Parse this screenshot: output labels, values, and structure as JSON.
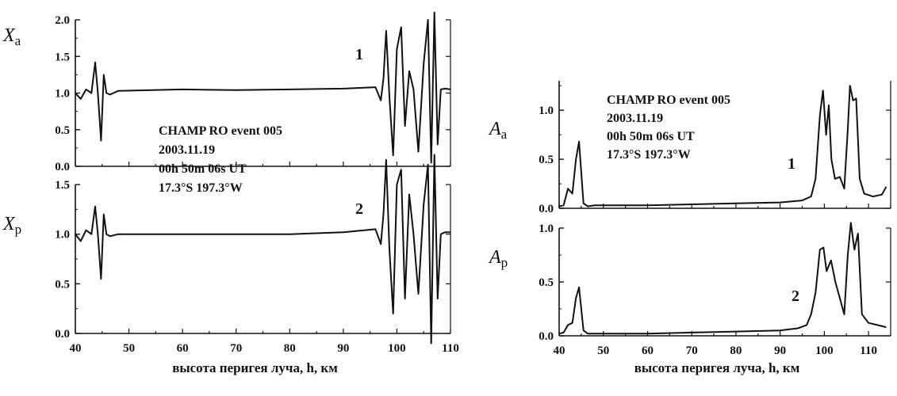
{
  "chart_data": [
    {
      "type": "line",
      "panel": "left-top",
      "ylabel": "Xa",
      "ylabel_main": "X",
      "ylabel_sub": "a",
      "curve_label": "1",
      "annotation": [
        "CHAMP RO event 005",
        "2003.11.19",
        "00h 50m 06s UT",
        "17.3°S  197.3°W"
      ],
      "xlim": [
        40,
        110
      ],
      "ylim": [
        0.0,
        2.0
      ],
      "yticks": [
        "0.0",
        "0.5",
        "1.0",
        "1.5",
        "2.0"
      ],
      "x": [
        40,
        41,
        42,
        43,
        43.7,
        44.2,
        44.8,
        45.3,
        45.8,
        46.5,
        48,
        60,
        70,
        80,
        90,
        96,
        97,
        97.5,
        98,
        98.6,
        99.3,
        100,
        100.8,
        101.5,
        102.3,
        103.1,
        104,
        105,
        105.8,
        106.4,
        107,
        107.6,
        108.2,
        109,
        110
      ],
      "values": [
        1.0,
        0.92,
        1.05,
        1.0,
        1.42,
        1.0,
        0.35,
        1.25,
        1.0,
        0.98,
        1.03,
        1.05,
        1.04,
        1.05,
        1.06,
        1.08,
        0.9,
        1.2,
        1.85,
        0.95,
        0.15,
        1.6,
        1.9,
        0.55,
        1.3,
        1.05,
        0.2,
        1.4,
        2.0,
        0.05,
        2.1,
        0.3,
        1.05,
        1.06,
        1.05
      ]
    },
    {
      "type": "line",
      "panel": "left-bottom",
      "ylabel": "Xp",
      "ylabel_main": "X",
      "ylabel_sub": "p",
      "curve_label": "2",
      "xlabel": "высота перигея луча, h, км",
      "xlim": [
        40,
        110
      ],
      "ylim": [
        0.0,
        1.5
      ],
      "yticks": [
        "0.0",
        "0.5",
        "1.0",
        "1.5"
      ],
      "xticks": [
        "40",
        "50",
        "60",
        "70",
        "80",
        "90",
        "100",
        "110"
      ],
      "x": [
        40,
        41,
        42,
        43,
        43.7,
        44.2,
        44.8,
        45.3,
        45.8,
        46.5,
        48,
        60,
        70,
        80,
        90,
        96,
        97,
        97.5,
        98,
        98.6,
        99.3,
        100,
        100.8,
        101.5,
        102.3,
        103.1,
        104,
        105,
        105.8,
        106.4,
        107,
        107.6,
        108.2,
        109,
        110
      ],
      "values": [
        1.0,
        0.93,
        1.04,
        1.0,
        1.28,
        1.0,
        0.55,
        1.2,
        1.0,
        0.98,
        1.0,
        1.0,
        1.0,
        1.0,
        1.02,
        1.05,
        0.9,
        1.2,
        1.75,
        0.85,
        0.2,
        1.5,
        1.65,
        0.35,
        1.4,
        1.0,
        0.4,
        1.3,
        1.7,
        -0.1,
        1.8,
        0.35,
        1.0,
        1.02,
        1.02
      ]
    },
    {
      "type": "line",
      "panel": "right-top",
      "ylabel": "Aa",
      "ylabel_main": "A",
      "ylabel_sub": "a",
      "curve_label": "1",
      "annotation": [
        "CHAMP RO event 005",
        "2003.11.19",
        "00h 50m 06s UT",
        "17.3°S  197.3°W"
      ],
      "xlim": [
        40,
        115
      ],
      "ylim": [
        0.0,
        1.3
      ],
      "yticks": [
        "0.0",
        "0.5",
        "1.0"
      ],
      "x": [
        40,
        41,
        42,
        43,
        43.8,
        44.5,
        45.5,
        46.5,
        48,
        60,
        70,
        80,
        90,
        95,
        97,
        98,
        99,
        99.7,
        100.4,
        101,
        101.6,
        102.4,
        103.5,
        104.5,
        105.3,
        105.8,
        106.5,
        107.2,
        108,
        109,
        111,
        113,
        114
      ],
      "values": [
        0.02,
        0.03,
        0.2,
        0.15,
        0.5,
        0.68,
        0.05,
        0.02,
        0.03,
        0.03,
        0.04,
        0.05,
        0.06,
        0.08,
        0.12,
        0.3,
        0.95,
        1.2,
        0.75,
        1.05,
        0.5,
        0.3,
        0.32,
        0.2,
        0.8,
        1.25,
        1.1,
        1.12,
        0.3,
        0.15,
        0.12,
        0.14,
        0.22
      ]
    },
    {
      "type": "line",
      "panel": "right-bottom",
      "ylabel": "Ap",
      "ylabel_main": "A",
      "ylabel_sub": "p",
      "curve_label": "2",
      "xlabel": "высота перигея луча, h, км",
      "xlim": [
        40,
        115
      ],
      "ylim": [
        0.0,
        1.0
      ],
      "yticks": [
        "0.0",
        "0.5",
        "1.0"
      ],
      "xticks": [
        "40",
        "50",
        "60",
        "70",
        "80",
        "90",
        "100",
        "110"
      ],
      "x": [
        40,
        41,
        42,
        43,
        43.8,
        44.5,
        45.5,
        46.5,
        48,
        60,
        70,
        80,
        90,
        94,
        96,
        97,
        98,
        99,
        99.8,
        100.5,
        101.5,
        102.5,
        103.5,
        104.5,
        105.3,
        106,
        106.8,
        107.6,
        108.5,
        110,
        112,
        114
      ],
      "values": [
        0.02,
        0.03,
        0.1,
        0.12,
        0.35,
        0.45,
        0.05,
        0.02,
        0.02,
        0.02,
        0.03,
        0.04,
        0.05,
        0.07,
        0.1,
        0.2,
        0.4,
        0.8,
        0.82,
        0.6,
        0.7,
        0.5,
        0.35,
        0.2,
        0.75,
        1.05,
        0.8,
        0.95,
        0.2,
        0.12,
        0.1,
        0.08
      ]
    }
  ]
}
